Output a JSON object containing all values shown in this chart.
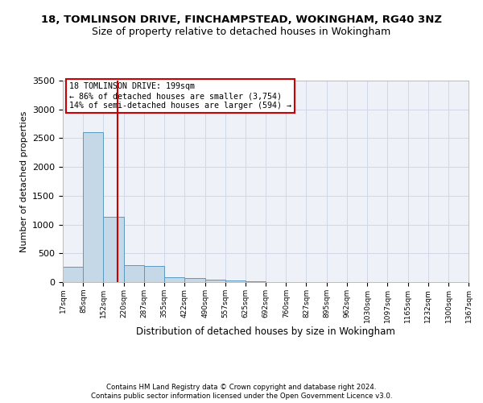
{
  "title": "18, TOMLINSON DRIVE, FINCHAMPSTEAD, WOKINGHAM, RG40 3NZ",
  "subtitle": "Size of property relative to detached houses in Wokingham",
  "xlabel": "Distribution of detached houses by size in Wokingham",
  "ylabel": "Number of detached properties",
  "bar_color": "#c5d8e8",
  "bar_edge_color": "#5a9abf",
  "bin_edges": [
    17,
    85,
    152,
    220,
    287,
    355,
    422,
    490,
    557,
    625,
    692,
    760,
    827,
    895,
    962,
    1030,
    1097,
    1165,
    1232,
    1300,
    1367
  ],
  "bar_heights": [
    270,
    2600,
    1130,
    290,
    285,
    90,
    65,
    40,
    25,
    8,
    5,
    3,
    2,
    1,
    1,
    0,
    0,
    0,
    0,
    0
  ],
  "tick_labels": [
    "17sqm",
    "85sqm",
    "152sqm",
    "220sqm",
    "287sqm",
    "355sqm",
    "422sqm",
    "490sqm",
    "557sqm",
    "625sqm",
    "692sqm",
    "760sqm",
    "827sqm",
    "895sqm",
    "962sqm",
    "1030sqm",
    "1097sqm",
    "1165sqm",
    "1232sqm",
    "1300sqm",
    "1367sqm"
  ],
  "red_line_x": 199,
  "annotation_text": "18 TOMLINSON DRIVE: 199sqm\n← 86% of detached houses are smaller (3,754)\n14% of semi-detached houses are larger (594) →",
  "annotation_box_color": "#ffffff",
  "annotation_border_color": "#cc0000",
  "ylim": [
    0,
    3500
  ],
  "yticks": [
    0,
    500,
    1000,
    1500,
    2000,
    2500,
    3000,
    3500
  ],
  "footer_line1": "Contains HM Land Registry data © Crown copyright and database right 2024.",
  "footer_line2": "Contains public sector information licensed under the Open Government Licence v3.0.",
  "grid_color": "#d0d8e8",
  "bg_color": "#eef2f8",
  "fig_bg_color": "#ffffff",
  "title_fontsize": 9.5,
  "subtitle_fontsize": 9
}
